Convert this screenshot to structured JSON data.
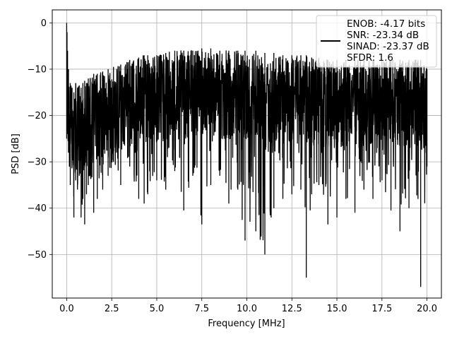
{
  "chart_data": {
    "type": "line",
    "title": "",
    "xlabel": "Frequency [MHz]",
    "ylabel": "PSD [dB]",
    "xlim": [
      -0.8,
      20.8
    ],
    "ylim": [
      -59.4,
      2.8
    ],
    "x_ticks": [
      0.0,
      2.5,
      5.0,
      7.5,
      10.0,
      12.5,
      15.0,
      17.5,
      20.0
    ],
    "x_tick_labels": [
      "0.0",
      "2.5",
      "5.0",
      "7.5",
      "10.0",
      "12.5",
      "15.0",
      "17.5",
      "20.0"
    ],
    "y_ticks": [
      0,
      -10,
      -20,
      -30,
      -40,
      -50
    ],
    "y_tick_labels": [
      "0",
      "−10",
      "−20",
      "−30",
      "−40",
      "−50"
    ],
    "grid": true,
    "legend_position": "top-right",
    "line_color": "#000000",
    "series": [
      {
        "legend_lines": [
          "ENOB: -4.17 bits",
          "SNR: -23.34 dB",
          "SINAD: -23.37 dB",
          "SFDR: 1.6"
        ],
        "note": "dense noise-like PSD trace, values estimated",
        "x": [
          0.0,
          0.02,
          0.05,
          0.1,
          0.2,
          0.3,
          0.4,
          0.5,
          0.6,
          0.7,
          0.8,
          0.9,
          1.0,
          1.1,
          1.2,
          1.3,
          1.5,
          1.7,
          2.0,
          2.3,
          2.6,
          3.0,
          3.5,
          4.0,
          4.3,
          4.5,
          5.0,
          5.5,
          6.0,
          6.5,
          7.0,
          7.5,
          8.0,
          8.5,
          9.0,
          9.5,
          9.9,
          10.5,
          11.0,
          11.5,
          12.0,
          12.5,
          13.0,
          13.3,
          13.6,
          14.0,
          14.5,
          15.0,
          15.5,
          16.0,
          16.5,
          17.0,
          17.5,
          18.0,
          18.5,
          19.0,
          19.5,
          19.65,
          20.0
        ],
        "upper": [
          0.0,
          -2.0,
          -6.0,
          -10.0,
          -13.0,
          -14.0,
          -15.0,
          -13.0,
          -14.0,
          -13.5,
          -14.0,
          -13.0,
          -12.5,
          -13.0,
          -12.0,
          -12.0,
          -11.0,
          -11.0,
          -10.5,
          -10.0,
          -9.5,
          -9.0,
          -8.0,
          -7.5,
          -7.0,
          -7.0,
          -7.0,
          -6.5,
          -6.0,
          -6.0,
          -6.0,
          -5.5,
          -5.5,
          -6.0,
          -6.0,
          -6.0,
          -6.0,
          -6.0,
          -6.5,
          -6.5,
          -7.0,
          -7.0,
          -7.0,
          -7.0,
          -7.5,
          -7.5,
          -8.0,
          -8.0,
          -8.0,
          -8.0,
          -8.0,
          -8.0,
          -8.0,
          -8.0,
          -8.0,
          -8.0,
          -8.0,
          -8.0,
          -10.0
        ],
        "lower": [
          -25.0,
          -20.0,
          -24.0,
          -28.0,
          -35.0,
          -31.0,
          -42.0,
          -34.0,
          -36.0,
          -33.0,
          -42.0,
          -38.0,
          -43.5,
          -37.0,
          -35.0,
          -33.0,
          -41.0,
          -38.0,
          -36.0,
          -33.0,
          -30.0,
          -35.0,
          -31.0,
          -38.0,
          -39.0,
          -37.0,
          -34.0,
          -36.0,
          -32.0,
          -40.5,
          -33.0,
          -43.5,
          -35.0,
          -33.0,
          -39.0,
          -36.0,
          -47.0,
          -45.0,
          -50.0,
          -40.0,
          -38.0,
          -37.0,
          -36.0,
          -55.0,
          -37.0,
          -35.0,
          -43.5,
          -42.0,
          -38.0,
          -41.0,
          -36.0,
          -38.0,
          -34.0,
          -40.5,
          -45.0,
          -40.0,
          -38.0,
          -57.0,
          -31.0
        ]
      }
    ]
  }
}
